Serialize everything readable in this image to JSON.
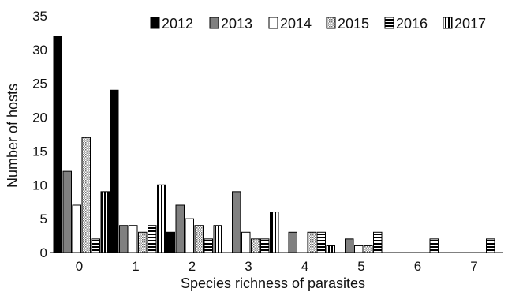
{
  "chart_data": {
    "type": "bar",
    "title": "",
    "xlabel": "Species richness of parasites",
    "ylabel": "Number of hosts",
    "ylim": [
      0,
      35
    ],
    "yticks": [
      "0",
      "5",
      "10",
      "15",
      "20",
      "25",
      "30",
      "35"
    ],
    "categories": [
      "0",
      "1",
      "2",
      "3",
      "4",
      "5",
      "6",
      "7"
    ],
    "grid": false,
    "legend_position": "top",
    "series": [
      {
        "name": "2012",
        "pattern": "solid-black",
        "values": [
          32,
          24,
          3,
          0,
          0,
          0,
          0,
          0
        ]
      },
      {
        "name": "2013",
        "pattern": "solid-gray",
        "values": [
          12,
          4,
          7,
          9,
          3,
          2,
          0,
          0
        ]
      },
      {
        "name": "2014",
        "pattern": "white",
        "values": [
          7,
          4,
          5,
          3,
          0,
          1,
          0,
          0
        ]
      },
      {
        "name": "2015",
        "pattern": "dotted",
        "values": [
          17,
          3,
          4,
          2,
          3,
          1,
          0,
          0
        ]
      },
      {
        "name": "2016",
        "pattern": "horizontal-stripes",
        "values": [
          2,
          4,
          2,
          2,
          3,
          3,
          2,
          2
        ]
      },
      {
        "name": "2017",
        "pattern": "vertical-stripes",
        "values": [
          9,
          10,
          4,
          6,
          1,
          0,
          0,
          0
        ]
      }
    ],
    "colors": {
      "black": "#000000",
      "gray": "#808080",
      "white": "#ffffff",
      "stroke": "#000000"
    }
  }
}
